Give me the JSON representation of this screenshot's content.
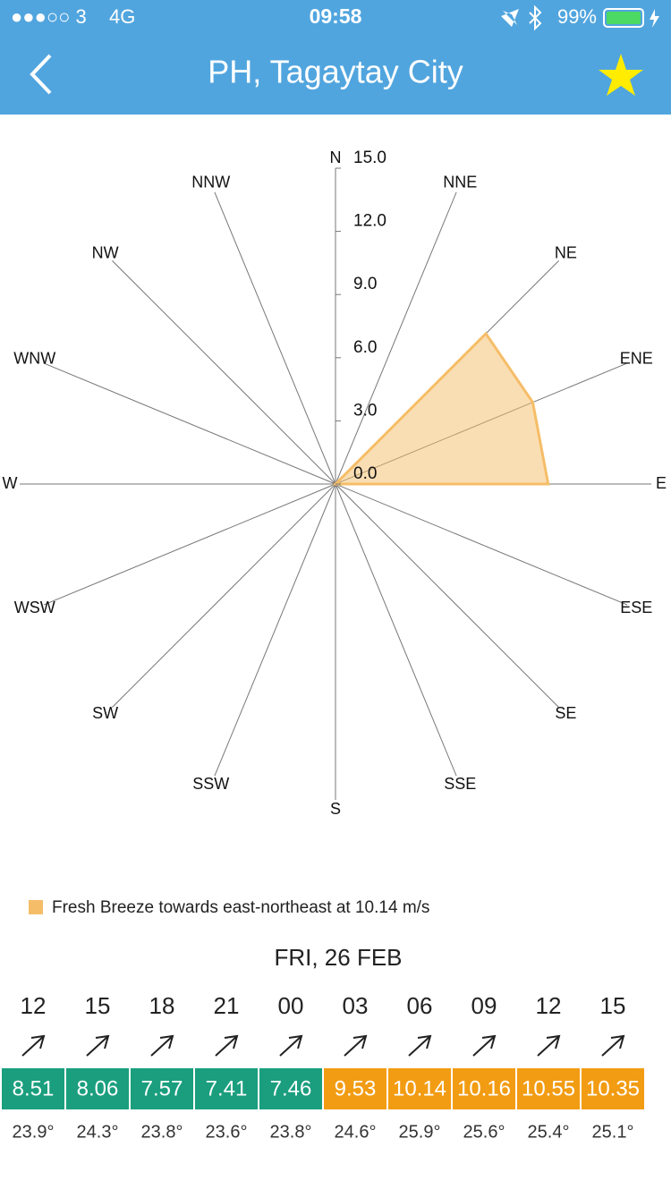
{
  "status_bar": {
    "carrier": "●●●○○ 3",
    "network": "4G",
    "time": "09:58",
    "battery": "99%"
  },
  "header": {
    "title": "PH, Tagaytay City"
  },
  "chart_data": {
    "type": "radar",
    "categories": [
      "N",
      "NNE",
      "NE",
      "ENE",
      "E",
      "ESE",
      "SE",
      "SSE",
      "S",
      "SSW",
      "SW",
      "WSW",
      "W",
      "WNW",
      "NW",
      "NNW"
    ],
    "series": [
      {
        "name": "Fresh Breeze towards east-northeast at 10.14 m/s",
        "color": "#f5bd68",
        "values": [
          0,
          0,
          10.1,
          10.14,
          10.1,
          0,
          0,
          0,
          0,
          0,
          0,
          0,
          0,
          0,
          0,
          0
        ]
      }
    ],
    "rlim": [
      0,
      15
    ],
    "rticks": [
      {
        "value": 0,
        "label": "0.0"
      },
      {
        "value": 3,
        "label": "3.0"
      },
      {
        "value": 6,
        "label": "6.0"
      },
      {
        "value": 9,
        "label": "9.0"
      },
      {
        "value": 12,
        "label": "12.0"
      },
      {
        "value": 15,
        "label": "15.0"
      }
    ]
  },
  "forecast": {
    "date": "FRI, 26 FEB",
    "columns": [
      {
        "hour": "12",
        "speed": 8.51,
        "color": "#1a9e7e",
        "temp": "23.9°"
      },
      {
        "hour": "15",
        "speed": 8.06,
        "color": "#1a9e7e",
        "temp": "24.3°"
      },
      {
        "hour": "18",
        "speed": 7.57,
        "color": "#1a9e7e",
        "temp": "23.8°"
      },
      {
        "hour": "21",
        "speed": 7.41,
        "color": "#1a9e7e",
        "temp": "23.6°"
      },
      {
        "hour": "00",
        "speed": 7.46,
        "color": "#1a9e7e",
        "temp": "23.8°"
      },
      {
        "hour": "03",
        "speed": 9.53,
        "color": "#f29c13",
        "temp": "24.6°"
      },
      {
        "hour": "06",
        "speed": 10.14,
        "color": "#f29c13",
        "temp": "25.9°"
      },
      {
        "hour": "09",
        "speed": 10.16,
        "color": "#f29c13",
        "temp": "25.6°"
      },
      {
        "hour": "12",
        "speed": 10.55,
        "color": "#f29c13",
        "temp": "25.4°"
      },
      {
        "hour": "15",
        "speed": 10.35,
        "color": "#f29c13",
        "temp": "25.1°"
      }
    ]
  }
}
